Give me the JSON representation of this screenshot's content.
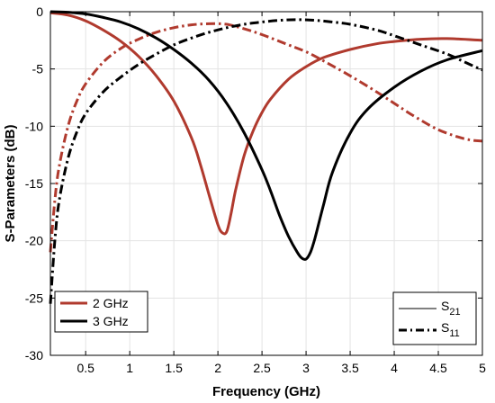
{
  "chart_data": {
    "type": "line",
    "xlabel": "Frequency (GHz)",
    "ylabel": "S-Parameters (dB)",
    "xlim": [
      0.1,
      5
    ],
    "ylim": [
      -30,
      0
    ],
    "xticks": [
      0.5,
      1,
      1.5,
      2,
      2.5,
      3,
      3.5,
      4,
      4.5,
      5
    ],
    "xtick_labels": [
      "0.5",
      "1",
      "1.5",
      "2",
      "2.5",
      "3",
      "3.5",
      "4",
      "4.5",
      "5"
    ],
    "yticks": [
      0,
      -5,
      -10,
      -15,
      -20,
      -25,
      -30
    ],
    "ytick_labels": [
      "0",
      "-5",
      "-10",
      "-15",
      "-20",
      "-25",
      "-30"
    ],
    "grid": true,
    "series": [
      {
        "name": "2 GHz",
        "param": "S21",
        "color": "#b03a2e",
        "style": "solid",
        "x": [
          0.1,
          0.3,
          0.5,
          0.7,
          0.9,
          1.1,
          1.3,
          1.5,
          1.7,
          1.8,
          1.9,
          2.0,
          2.05,
          2.1,
          2.15,
          2.2,
          2.3,
          2.4,
          2.5,
          2.6,
          2.8,
          3.0,
          3.2,
          3.5,
          3.8,
          4.0,
          4.3,
          4.6,
          5.0
        ],
        "y": [
          -0.1,
          -0.3,
          -0.8,
          -1.6,
          -2.6,
          -3.9,
          -5.6,
          -7.8,
          -11.0,
          -13.3,
          -16.0,
          -18.6,
          -19.3,
          -19.2,
          -17.6,
          -15.6,
          -12.5,
          -10.4,
          -8.8,
          -7.6,
          -5.9,
          -4.8,
          -4.0,
          -3.3,
          -2.8,
          -2.6,
          -2.4,
          -2.35,
          -2.5
        ]
      },
      {
        "name": "2 GHz",
        "param": "S11",
        "color": "#b03a2e",
        "style": "dashdot",
        "x": [
          0.1,
          0.15,
          0.2,
          0.3,
          0.4,
          0.5,
          0.7,
          0.9,
          1.1,
          1.3,
          1.5,
          1.7,
          1.9,
          2.1,
          2.3,
          2.5,
          2.8,
          3.0,
          3.2,
          3.5,
          3.8,
          4.0,
          4.2,
          4.5,
          4.8,
          5.0
        ],
        "y": [
          -21.0,
          -16.5,
          -13.5,
          -10.0,
          -7.8,
          -6.3,
          -4.4,
          -3.2,
          -2.4,
          -1.8,
          -1.4,
          -1.15,
          -1.05,
          -1.1,
          -1.5,
          -2.0,
          -2.9,
          -3.5,
          -4.3,
          -5.6,
          -7.0,
          -8.0,
          -9.0,
          -10.3,
          -11.1,
          -11.3
        ]
      },
      {
        "name": "3 GHz",
        "param": "S21",
        "color": "#000000",
        "style": "solid",
        "x": [
          0.1,
          0.3,
          0.5,
          0.7,
          0.9,
          1.1,
          1.3,
          1.5,
          1.7,
          1.9,
          2.1,
          2.3,
          2.5,
          2.6,
          2.7,
          2.8,
          2.9,
          2.95,
          3.0,
          3.05,
          3.1,
          3.2,
          3.3,
          3.5,
          3.7,
          4.0,
          4.3,
          4.6,
          5.0
        ],
        "y": [
          0.0,
          -0.05,
          -0.2,
          -0.5,
          -0.9,
          -1.5,
          -2.3,
          -3.3,
          -4.5,
          -6.0,
          -8.0,
          -10.6,
          -13.8,
          -15.7,
          -17.8,
          -19.6,
          -21.0,
          -21.5,
          -21.6,
          -21.0,
          -19.8,
          -16.8,
          -14.0,
          -10.6,
          -8.5,
          -6.6,
          -5.2,
          -4.2,
          -3.4
        ]
      },
      {
        "name": "3 GHz",
        "param": "S11",
        "color": "#000000",
        "style": "dashdot",
        "x": [
          0.1,
          0.15,
          0.2,
          0.3,
          0.4,
          0.5,
          0.7,
          0.9,
          1.1,
          1.3,
          1.5,
          1.7,
          1.9,
          2.1,
          2.3,
          2.5,
          2.7,
          2.9,
          3.1,
          3.3,
          3.5,
          3.8,
          4.0,
          4.3,
          4.6,
          4.8,
          5.0
        ],
        "y": [
          -25.5,
          -20.0,
          -16.5,
          -12.8,
          -10.5,
          -8.9,
          -7.0,
          -5.7,
          -4.6,
          -3.7,
          -2.9,
          -2.3,
          -1.8,
          -1.4,
          -1.1,
          -0.9,
          -0.75,
          -0.7,
          -0.75,
          -0.9,
          -1.1,
          -1.6,
          -2.1,
          -2.9,
          -3.7,
          -4.4,
          -5.1
        ]
      }
    ],
    "legend_series": {
      "position": "bottom-left",
      "entries": [
        {
          "label": "2 GHz",
          "color": "#b03a2e"
        },
        {
          "label": "3 GHz",
          "color": "#000000"
        }
      ]
    },
    "legend_params": {
      "position": "bottom-right",
      "entries": [
        {
          "label": "S",
          "sub": "21",
          "style": "solid"
        },
        {
          "label": "S",
          "sub": "11",
          "style": "dashdot"
        }
      ]
    }
  }
}
